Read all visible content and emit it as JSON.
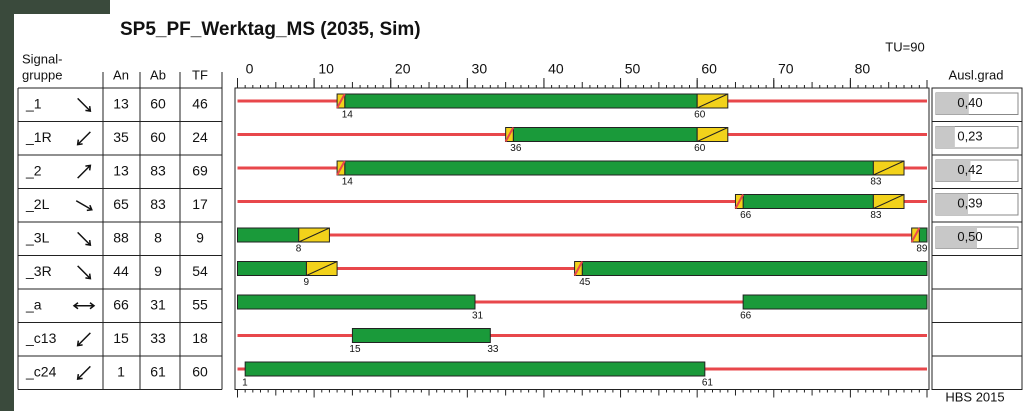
{
  "title": "SP5_PF_Werktag_MS (2035, Sim)",
  "cycle_label": "TU=90",
  "cycle": 90,
  "header": {
    "group_line1": "Signal-",
    "group_line2": "gruppe",
    "on": "An",
    "off": "Ab",
    "duration": "TF",
    "utilization": "Ausl.grad"
  },
  "axis_ticks": [
    0,
    10,
    20,
    30,
    40,
    50,
    60,
    70,
    80
  ],
  "footer": "HBS 2015",
  "colors": {
    "green": "#1a9a3a",
    "red": "#e8474b",
    "yellow": "#f2d21b"
  },
  "rows": [
    {
      "group": "_1",
      "on": "13",
      "off": "60",
      "duration": "46",
      "start": 14,
      "end": 60,
      "amber": true,
      "utilization": "0,40",
      "util_value": 0.4
    },
    {
      "group": "_1R",
      "on": "35",
      "off": "60",
      "duration": "24",
      "start": 36,
      "end": 60,
      "amber": true,
      "utilization": "0,23",
      "util_value": 0.23
    },
    {
      "group": "_2",
      "on": "13",
      "off": "83",
      "duration": "69",
      "start": 14,
      "end": 83,
      "amber": true,
      "utilization": "0,42",
      "util_value": 0.42
    },
    {
      "group": "_2L",
      "on": "65",
      "off": "83",
      "duration": "17",
      "start": 66,
      "end": 83,
      "amber": true,
      "utilization": "0,39",
      "util_value": 0.39
    },
    {
      "group": "_3L",
      "on": "88",
      "off": "8",
      "duration": "9",
      "start": 89,
      "end": 8,
      "amber": true,
      "utilization": "0,50",
      "util_value": 0.5
    },
    {
      "group": "_3R",
      "on": "44",
      "off": "9",
      "duration": "54",
      "start": 45,
      "end": 9,
      "amber": true
    },
    {
      "group": "_a",
      "on": "66",
      "off": "31",
      "duration": "55",
      "start": 66,
      "end": 31,
      "amber": false
    },
    {
      "group": "_c13",
      "on": "15",
      "off": "33",
      "duration": "18",
      "start": 15,
      "end": 33,
      "amber": false
    },
    {
      "group": "_c24",
      "on": "1",
      "off": "61",
      "duration": "60",
      "start": 1,
      "end": 61,
      "amber": false
    }
  ]
}
